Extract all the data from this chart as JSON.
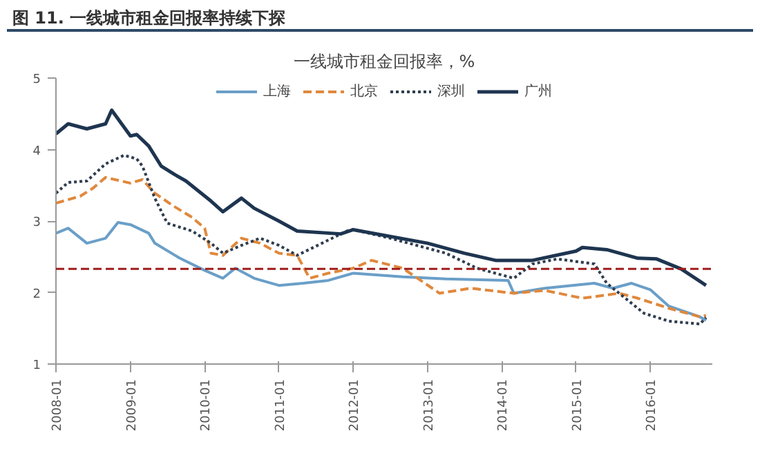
{
  "chart_data": {
    "type": "line",
    "title": "图 11. 一线城市租金回报率持续下探",
    "subtitle": "一线城市租金回报率，%",
    "xlim": [
      "2008-01",
      "2016-11"
    ],
    "xticks": [
      "2008-01",
      "2009-01",
      "2010-01",
      "2011-01",
      "2012-01",
      "2013-01",
      "2014-01",
      "2015-01",
      "2016-01"
    ],
    "ylim": [
      1,
      5
    ],
    "yticks": [
      1,
      2,
      3,
      4,
      5
    ],
    "grid": false,
    "legend": "top",
    "marker": "none",
    "series": [
      {
        "name": "上海",
        "color": "#6a9fc8",
        "line_style": "solid",
        "x": [
          "2008-01",
          "2008-03",
          "2008-06",
          "2008-09",
          "2008-11",
          "2009-01",
          "2009-04",
          "2009-05",
          "2009-09",
          "2010-01",
          "2010-04",
          "2010-06",
          "2010-09",
          "2011-01",
          "2011-05",
          "2011-09",
          "2012-01",
          "2012-09",
          "2013-04",
          "2014-02",
          "2014-03",
          "2014-08",
          "2015-04",
          "2015-07",
          "2015-10",
          "2016-01",
          "2016-04",
          "2016-09",
          "2016-10"
        ],
        "values": [
          2.83,
          2.9,
          2.69,
          2.76,
          2.98,
          2.95,
          2.83,
          2.69,
          2.48,
          2.31,
          2.2,
          2.34,
          2.2,
          2.1,
          2.13,
          2.17,
          2.27,
          2.22,
          2.19,
          2.17,
          1.99,
          2.06,
          2.13,
          2.06,
          2.13,
          2.04,
          1.81,
          1.66,
          1.61
        ]
      },
      {
        "name": "北京",
        "color": "#e0883c",
        "line_style": "dashed",
        "x": [
          "2008-01",
          "2008-05",
          "2008-07",
          "2008-09",
          "2009-01",
          "2009-03",
          "2009-05",
          "2009-08",
          "2009-11",
          "2010-01",
          "2010-02",
          "2010-04",
          "2010-07",
          "2010-10",
          "2011-01",
          "2011-04",
          "2011-06",
          "2011-09",
          "2012-01",
          "2012-04",
          "2012-09",
          "2013-03",
          "2013-08",
          "2014-03",
          "2014-08",
          "2015-02",
          "2015-08",
          "2015-11",
          "2016-04",
          "2016-09",
          "2016-10"
        ],
        "values": [
          3.25,
          3.35,
          3.46,
          3.61,
          3.53,
          3.58,
          3.39,
          3.21,
          3.05,
          2.9,
          2.55,
          2.52,
          2.76,
          2.69,
          2.55,
          2.52,
          2.2,
          2.27,
          2.34,
          2.45,
          2.34,
          1.99,
          2.06,
          1.99,
          2.03,
          1.92,
          1.99,
          1.92,
          1.78,
          1.66,
          1.68
        ]
      },
      {
        "name": "深圳",
        "color": "#2f3d4e",
        "line_style": "dotted",
        "x": [
          "2008-01",
          "2008-03",
          "2008-06",
          "2008-09",
          "2008-12",
          "2009-02",
          "2009-03",
          "2009-05",
          "2009-07",
          "2009-11",
          "2010-02",
          "2010-04",
          "2010-07",
          "2010-10",
          "2011-01",
          "2011-04",
          "2011-08",
          "2011-12",
          "2012-01",
          "2012-07",
          "2013-04",
          "2013-09",
          "2014-03",
          "2014-06",
          "2014-10",
          "2015-04",
          "2015-06",
          "2015-08",
          "2015-12",
          "2016-04",
          "2016-09",
          "2016-10"
        ],
        "values": [
          3.39,
          3.54,
          3.56,
          3.8,
          3.92,
          3.87,
          3.77,
          3.32,
          2.97,
          2.86,
          2.69,
          2.55,
          2.66,
          2.76,
          2.66,
          2.52,
          2.69,
          2.86,
          2.88,
          2.76,
          2.55,
          2.34,
          2.2,
          2.4,
          2.47,
          2.4,
          2.13,
          1.99,
          1.71,
          1.6,
          1.56,
          1.65
        ]
      },
      {
        "name": "广州",
        "color": "#1e3550",
        "line_style": "solid",
        "x": [
          "2008-01",
          "2008-03",
          "2008-06",
          "2008-09",
          "2008-10",
          "2009-01",
          "2009-02",
          "2009-04",
          "2009-06",
          "2009-08",
          "2009-10",
          "2010-02",
          "2010-04",
          "2010-07",
          "2010-09",
          "2011-01",
          "2011-04",
          "2011-11",
          "2012-01",
          "2013-01",
          "2013-07",
          "2013-12",
          "2014-06",
          "2015-01",
          "2015-02",
          "2015-06",
          "2015-11",
          "2016-02",
          "2016-06",
          "2016-10"
        ],
        "values": [
          4.22,
          4.36,
          4.29,
          4.36,
          4.55,
          4.19,
          4.21,
          4.05,
          3.77,
          3.66,
          3.56,
          3.28,
          3.13,
          3.32,
          3.18,
          3.0,
          2.86,
          2.82,
          2.88,
          2.69,
          2.55,
          2.45,
          2.45,
          2.58,
          2.63,
          2.6,
          2.48,
          2.47,
          2.33,
          2.1
        ]
      }
    ],
    "ref_lines": [
      {
        "axis": "y",
        "value": 2.33,
        "color": "#a01c1c",
        "line_style": "dashed"
      }
    ]
  }
}
